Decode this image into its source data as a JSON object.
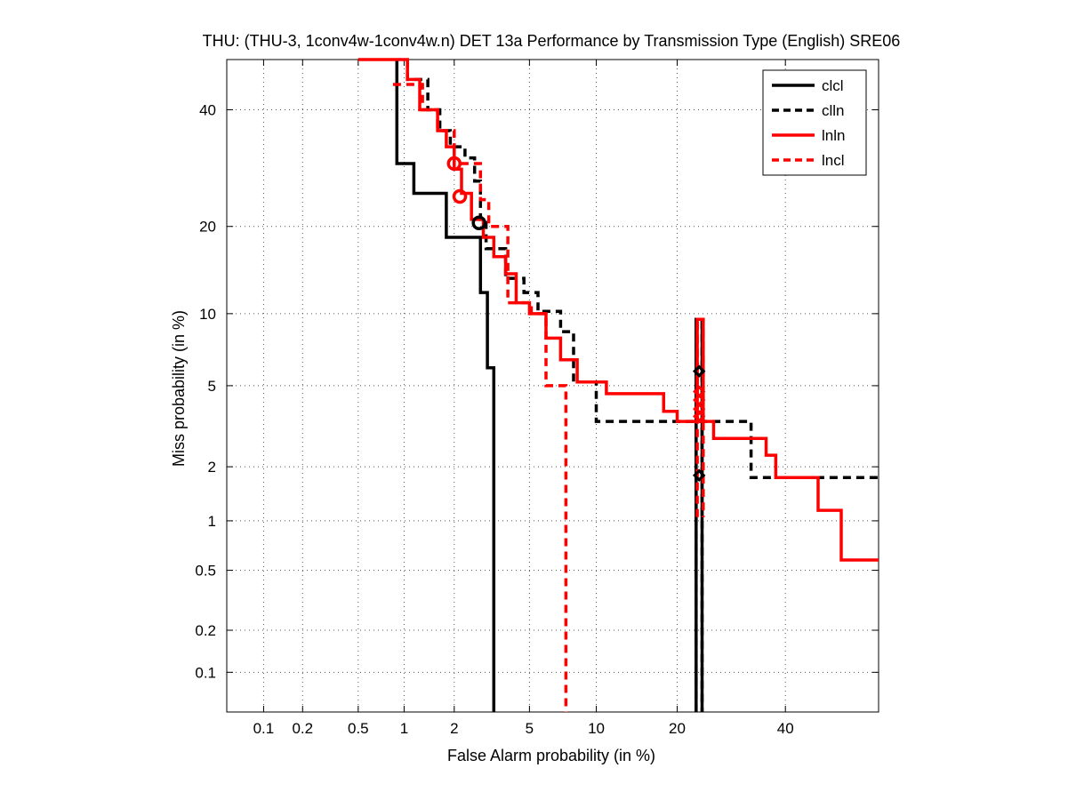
{
  "chart_data": {
    "type": "line",
    "title": "THU: (THU-3, 1conv4w-1conv4w.n) DET 13a Performance by Transmission Type (English) SRE06",
    "xlabel": "False Alarm probability (in %)",
    "ylabel": "Miss probability (in %)",
    "scale": "normal-deviate (probit) on both axes",
    "xlim": [
      0.05,
      60
    ],
    "ylim": [
      0.05,
      50
    ],
    "x_ticks": [
      0.1,
      0.2,
      0.5,
      1,
      2,
      5,
      10,
      20,
      40
    ],
    "x_tick_labels": [
      "0.1",
      "0.2",
      "0.5",
      "1",
      "2",
      "5",
      "10",
      "20",
      "40"
    ],
    "y_ticks": [
      0.1,
      0.2,
      0.5,
      1,
      2,
      5,
      10,
      20,
      40
    ],
    "y_tick_labels": [
      "0.1",
      "0.2",
      "0.5",
      "1",
      "2",
      "5",
      "10",
      "20",
      "40"
    ],
    "grid": true,
    "legend_position": "top-right",
    "series": [
      {
        "name": "clcl",
        "color": "#000000",
        "dash": "solid",
        "points": [
          [
            0.9,
            50
          ],
          [
            0.9,
            30
          ],
          [
            1.15,
            30
          ],
          [
            1.15,
            25
          ],
          [
            1.8,
            25
          ],
          [
            1.8,
            18.5
          ],
          [
            2.8,
            18.5
          ],
          [
            2.8,
            12
          ],
          [
            3.05,
            12
          ],
          [
            3.05,
            6
          ],
          [
            3.3,
            6
          ],
          [
            3.3,
            0.05
          ]
        ],
        "min_dcf_point": [
          2.75,
          20.5
        ],
        "act_dcf_points": [
          [
            23.5,
            1.8
          ],
          [
            23.5,
            5.8
          ]
        ],
        "spike": [
          [
            23.0,
            0.05
          ],
          [
            23.0,
            9.5
          ],
          [
            24.0,
            9.5
          ],
          [
            24.0,
            0.05
          ]
        ]
      },
      {
        "name": "clln",
        "color": "#000000",
        "dash": "dashed",
        "points": [
          [
            1.05,
            50
          ],
          [
            1.05,
            46
          ],
          [
            1.4,
            46
          ],
          [
            1.4,
            40
          ],
          [
            1.65,
            40
          ],
          [
            1.65,
            36
          ],
          [
            1.9,
            36
          ],
          [
            1.9,
            33
          ],
          [
            2.3,
            33
          ],
          [
            2.3,
            31
          ],
          [
            2.6,
            31
          ],
          [
            2.6,
            27
          ],
          [
            2.8,
            27
          ],
          [
            2.8,
            21
          ],
          [
            3.0,
            21
          ],
          [
            3.0,
            17
          ],
          [
            3.8,
            17
          ],
          [
            3.8,
            13.5
          ],
          [
            4.7,
            13.5
          ],
          [
            4.7,
            12
          ],
          [
            5.5,
            12
          ],
          [
            5.5,
            10.2
          ],
          [
            7.0,
            10.2
          ],
          [
            7.0,
            8.5
          ],
          [
            8.0,
            8.5
          ],
          [
            8.0,
            5.2
          ],
          [
            10.0,
            5.2
          ],
          [
            10.0,
            3.4
          ],
          [
            33.0,
            3.4
          ],
          [
            33.0,
            1.75
          ],
          [
            60,
            1.75
          ]
        ],
        "act_dcf_points": [
          [
            23.5,
            1.8
          ],
          [
            23.5,
            5.8
          ]
        ],
        "spike": [
          [
            23.0,
            0.05
          ],
          [
            23.0,
            9.5
          ],
          [
            24.0,
            9.5
          ],
          [
            24.0,
            0.05
          ]
        ]
      },
      {
        "name": "lnln",
        "color": "#ff0000",
        "dash": "solid",
        "points": [
          [
            0.5,
            50
          ],
          [
            1.05,
            50
          ],
          [
            1.05,
            46
          ],
          [
            1.25,
            46
          ],
          [
            1.25,
            40
          ],
          [
            1.6,
            40
          ],
          [
            1.6,
            36
          ],
          [
            1.8,
            36
          ],
          [
            1.8,
            33
          ],
          [
            2.0,
            33
          ],
          [
            2.0,
            29
          ],
          [
            2.2,
            29
          ],
          [
            2.2,
            25
          ],
          [
            2.5,
            25
          ],
          [
            2.5,
            21
          ],
          [
            2.9,
            21
          ],
          [
            2.9,
            18.5
          ],
          [
            3.3,
            18.5
          ],
          [
            3.3,
            16
          ],
          [
            3.8,
            16
          ],
          [
            3.8,
            14
          ],
          [
            4.3,
            14
          ],
          [
            4.3,
            11
          ],
          [
            5.0,
            11
          ],
          [
            5.0,
            10
          ],
          [
            6.0,
            10
          ],
          [
            6.0,
            8
          ],
          [
            7.0,
            8
          ],
          [
            7.0,
            6.5
          ],
          [
            8.3,
            6.5
          ],
          [
            8.3,
            5.2
          ],
          [
            11.0,
            5.2
          ],
          [
            11.0,
            4.6
          ],
          [
            18.0,
            4.6
          ],
          [
            18.0,
            3.8
          ],
          [
            20.0,
            3.8
          ],
          [
            20.0,
            3.4
          ],
          [
            26.0,
            3.4
          ],
          [
            26.0,
            2.8
          ],
          [
            36.0,
            2.8
          ],
          [
            36.0,
            2.3
          ],
          [
            38.0,
            2.3
          ],
          [
            38.0,
            1.75
          ],
          [
            47.0,
            1.75
          ],
          [
            47.0,
            1.15
          ],
          [
            52.0,
            1.15
          ],
          [
            52.0,
            0.58
          ],
          [
            60,
            0.58
          ]
        ],
        "min_dcf_point": [
          2.15,
          24.5
        ],
        "act_dcf_points": [
          [
            23.5,
            4.7
          ],
          [
            23.5,
            3.9
          ]
        ],
        "spike": [
          [
            23.2,
            3.4
          ],
          [
            23.2,
            9.5
          ],
          [
            24.2,
            9.5
          ],
          [
            24.2,
            3.4
          ]
        ]
      },
      {
        "name": "lncl",
        "color": "#ff0000",
        "dash": "dashed",
        "points": [
          [
            0.85,
            45
          ],
          [
            1.3,
            45
          ],
          [
            1.3,
            40
          ],
          [
            1.6,
            40
          ],
          [
            1.6,
            36
          ],
          [
            2.0,
            36
          ],
          [
            2.0,
            30
          ],
          [
            2.8,
            30
          ],
          [
            2.8,
            24
          ],
          [
            3.1,
            24
          ],
          [
            3.1,
            20
          ],
          [
            3.9,
            20
          ],
          [
            3.9,
            11
          ],
          [
            5.1,
            11
          ],
          [
            5.1,
            10
          ],
          [
            6.0,
            10
          ],
          [
            6.0,
            5.0
          ],
          [
            7.4,
            5.0
          ],
          [
            7.4,
            0.05
          ]
        ],
        "min_dcf_point": [
          2.0,
          30
        ],
        "act_dcf_points": [
          [
            23.5,
            4.3
          ],
          [
            23.5,
            3.6
          ]
        ],
        "spike": [
          [
            23.2,
            1.05
          ],
          [
            23.2,
            9.5
          ],
          [
            24.2,
            9.5
          ],
          [
            24.2,
            1.05
          ]
        ]
      }
    ]
  }
}
